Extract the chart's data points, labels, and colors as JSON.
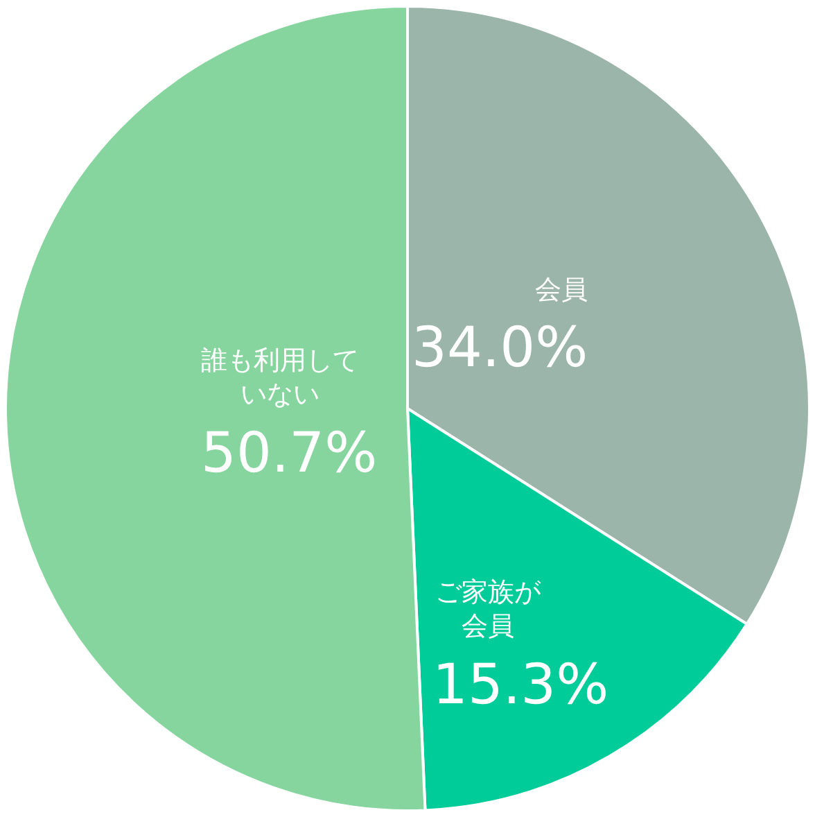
{
  "chart_data": {
    "type": "pie",
    "categories": [
      "会員",
      "ご家族が会員",
      "誰も利用していない"
    ],
    "values": [
      34.0,
      15.3,
      50.7
    ],
    "value_labels": [
      "34.0%",
      "15.3%",
      "50.7%"
    ],
    "colors": [
      "#9bb5aa",
      "#00cc99",
      "#86d59e"
    ],
    "legend": false
  }
}
